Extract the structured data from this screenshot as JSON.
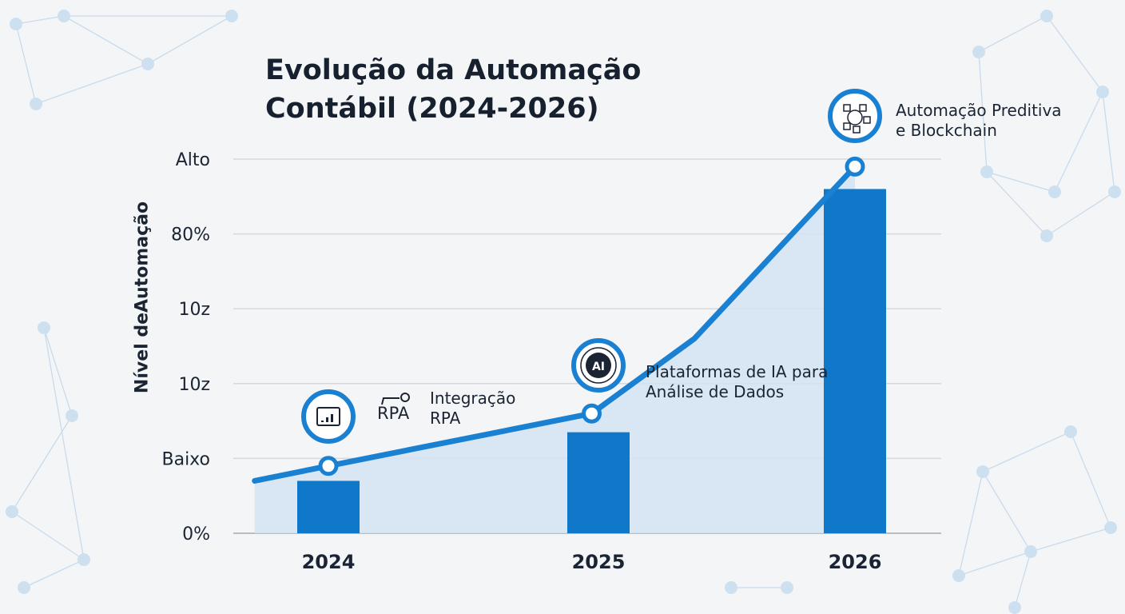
{
  "chart_data": {
    "type": "bar",
    "title": "Evolução da Automação Contábil (2024-2026)",
    "ylabel": "Nível  deAutomação",
    "xlabel": "",
    "categories": [
      "2024",
      "2025",
      "2026"
    ],
    "y_tick_labels": [
      "0%",
      "Baixo",
      "10z",
      "10z",
      "80%",
      "Alto"
    ],
    "ylim": [
      0,
      5
    ],
    "grid": true,
    "bars": {
      "values": [
        0.7,
        1.35,
        4.6
      ],
      "color": "#0f78c8"
    },
    "line": {
      "x": [
        2023.72,
        2024,
        2025,
        2025.39,
        2026
      ],
      "y": [
        0.7,
        0.9,
        1.6,
        2.6,
        4.9
      ],
      "color": "#1a80d2",
      "area_fill": "#d3e3f3"
    },
    "annotations": [
      {
        "category": "2024",
        "icon": "chart-window-icon",
        "badge": "RPA",
        "lines": [
          "Integração",
          "RPA"
        ]
      },
      {
        "category": "2025",
        "icon": "ai-chip-icon",
        "badge": "AI",
        "lines": [
          "Plataformas de IA para",
          "Análise de Dados"
        ]
      },
      {
        "category": "2026",
        "icon": "blockchain-network-icon",
        "lines": [
          "Automação Preditiva",
          "e Blockchain"
        ]
      }
    ]
  }
}
